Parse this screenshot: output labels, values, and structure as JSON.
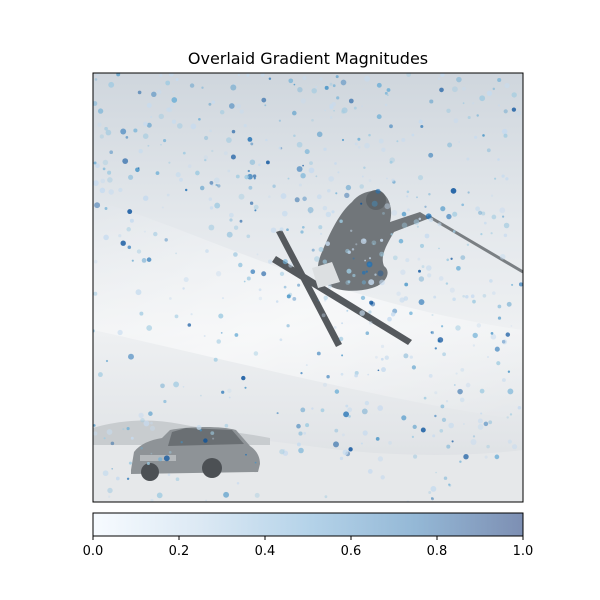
{
  "chart_data": {
    "type": "heatmap",
    "title": "Overlaid Gradient Magnitudes",
    "xlabel": "",
    "ylabel": "",
    "axes_ticks": "none",
    "background_image": "grayscale photo of a skier mid-air above a snowy slope with a parked hatchback car in the lower left",
    "colormap": "Blues",
    "colorbar": {
      "orientation": "horizontal",
      "placement": "bottom",
      "range": [
        0.0,
        1.0
      ],
      "ticks": [
        0.0,
        0.2,
        0.4,
        0.6,
        0.8,
        1.0
      ],
      "tick_labels": [
        "0.0",
        "0.2",
        "0.4",
        "0.6",
        "0.8",
        "1.0"
      ]
    },
    "grid": false
  },
  "colors": {
    "cmap_low": "#f7fbff",
    "cmap_mid": "#a6cde4",
    "cmap_high": "#08519c",
    "frame": "#000000",
    "snow_light": "#f2f4f6",
    "snow_shadow": "#d4d8dc",
    "figure_gray": "#6b7075"
  }
}
